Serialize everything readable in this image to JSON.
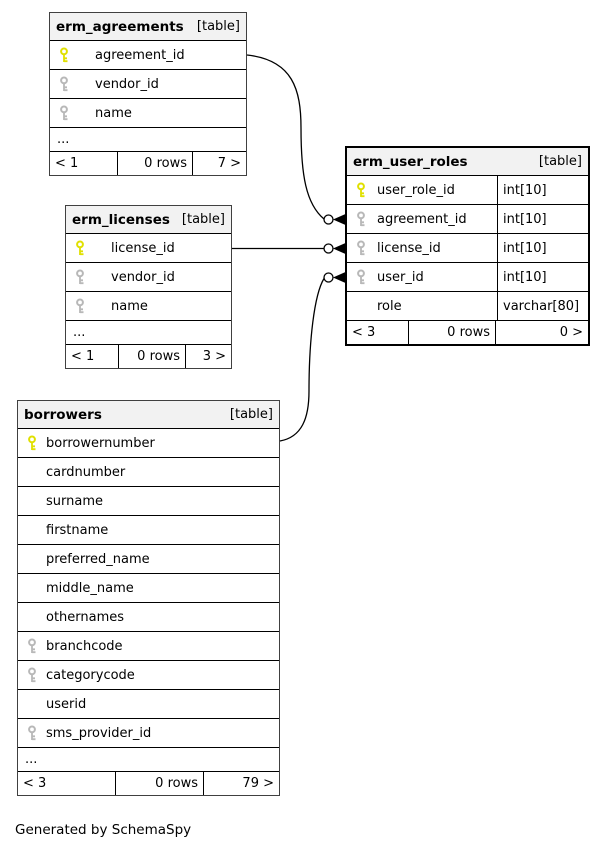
{
  "page": {
    "footer_note": "Generated by SchemaSpy"
  },
  "colors": {
    "header_bg": "#f2f2f2",
    "table_border": "#000000",
    "primary_key": "#e0e000",
    "index_key": "#b8b8b8"
  },
  "tables": [
    {
      "id": "erm_agreements",
      "name": "erm_agreements",
      "tag": "[table]",
      "emphasized": false,
      "columns": [
        {
          "name": "agreement_id",
          "key": "primary"
        },
        {
          "name": "vendor_id",
          "key": "index"
        },
        {
          "name": "name",
          "key": "index"
        }
      ],
      "ellipsis": "...",
      "footer": {
        "left": "< 1",
        "center": "0 rows",
        "right": "7 >"
      }
    },
    {
      "id": "erm_licenses",
      "name": "erm_licenses",
      "tag": "[table]",
      "emphasized": false,
      "columns": [
        {
          "name": "license_id",
          "key": "primary"
        },
        {
          "name": "vendor_id",
          "key": "index"
        },
        {
          "name": "name",
          "key": "index"
        }
      ],
      "ellipsis": "...",
      "footer": {
        "left": "< 1",
        "center": "0 rows",
        "right": "3 >"
      }
    },
    {
      "id": "erm_user_roles",
      "name": "erm_user_roles",
      "tag": "[table]",
      "emphasized": true,
      "columns": [
        {
          "name": "user_role_id",
          "key": "primary",
          "type": "int[10]"
        },
        {
          "name": "agreement_id",
          "key": "index",
          "type": "int[10]"
        },
        {
          "name": "license_id",
          "key": "index",
          "type": "int[10]"
        },
        {
          "name": "user_id",
          "key": "index",
          "type": "int[10]"
        },
        {
          "name": "role",
          "key": "none",
          "type": "varchar[80]"
        }
      ],
      "footer": {
        "left": "< 3",
        "center": "0 rows",
        "right": "0 >"
      }
    },
    {
      "id": "borrowers",
      "name": "borrowers",
      "tag": "[table]",
      "emphasized": false,
      "columns": [
        {
          "name": "borrowernumber",
          "key": "primary"
        },
        {
          "name": "cardnumber",
          "key": "none"
        },
        {
          "name": "surname",
          "key": "none"
        },
        {
          "name": "firstname",
          "key": "none"
        },
        {
          "name": "preferred_name",
          "key": "none"
        },
        {
          "name": "middle_name",
          "key": "none"
        },
        {
          "name": "othernames",
          "key": "none"
        },
        {
          "name": "branchcode",
          "key": "index"
        },
        {
          "name": "categorycode",
          "key": "index"
        },
        {
          "name": "userid",
          "key": "none"
        },
        {
          "name": "sms_provider_id",
          "key": "index"
        }
      ],
      "ellipsis": "...",
      "footer": {
        "left": "< 3",
        "center": "0 rows",
        "right": "79 >"
      }
    }
  ],
  "connectors": [
    {
      "from_table": "erm_agreements",
      "from_column": "agreement_id",
      "to_table": "erm_user_roles",
      "to_column": "agreement_id",
      "to_marker": "zero-or-more"
    },
    {
      "from_table": "erm_licenses",
      "from_column": "license_id",
      "to_table": "erm_user_roles",
      "to_column": "license_id",
      "to_marker": "zero-or-more"
    },
    {
      "from_table": "borrowers",
      "from_column": "borrowernumber",
      "to_table": "erm_user_roles",
      "to_column": "user_id",
      "to_marker": "zero-or-more"
    }
  ]
}
